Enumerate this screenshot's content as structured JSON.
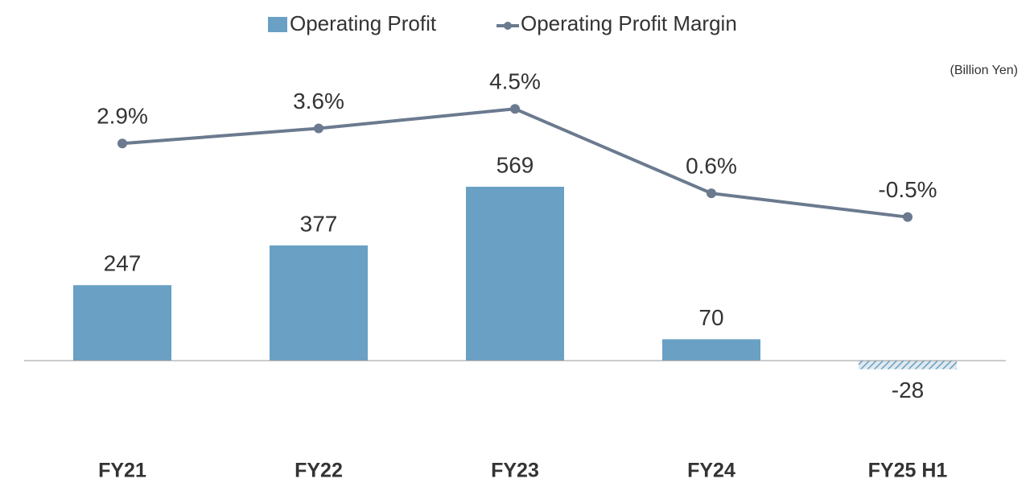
{
  "chart_data": {
    "type": "bar-line",
    "annotation": "(Billion Yen)",
    "categories": [
      "FY21",
      "FY22",
      "FY23",
      "FY24",
      "FY25 H1"
    ],
    "series": [
      {
        "name": "Operating Profit",
        "type": "bar",
        "color": "#6aa0c4",
        "values": [
          247,
          377,
          569,
          70,
          -28
        ]
      },
      {
        "name": "Operating Profit Margin",
        "type": "line",
        "axis": "y2",
        "color": "#6b7a8f",
        "values": [
          2.9,
          3.6,
          4.5,
          0.6,
          -0.5
        ],
        "value_labels": [
          "2.9%",
          "3.6%",
          "4.5%",
          "0.6%",
          "-0.5%"
        ]
      }
    ],
    "ylim": [
      -295,
      1022
    ],
    "y2lim": [
      -11.3,
      7.3
    ],
    "legend": "top"
  }
}
